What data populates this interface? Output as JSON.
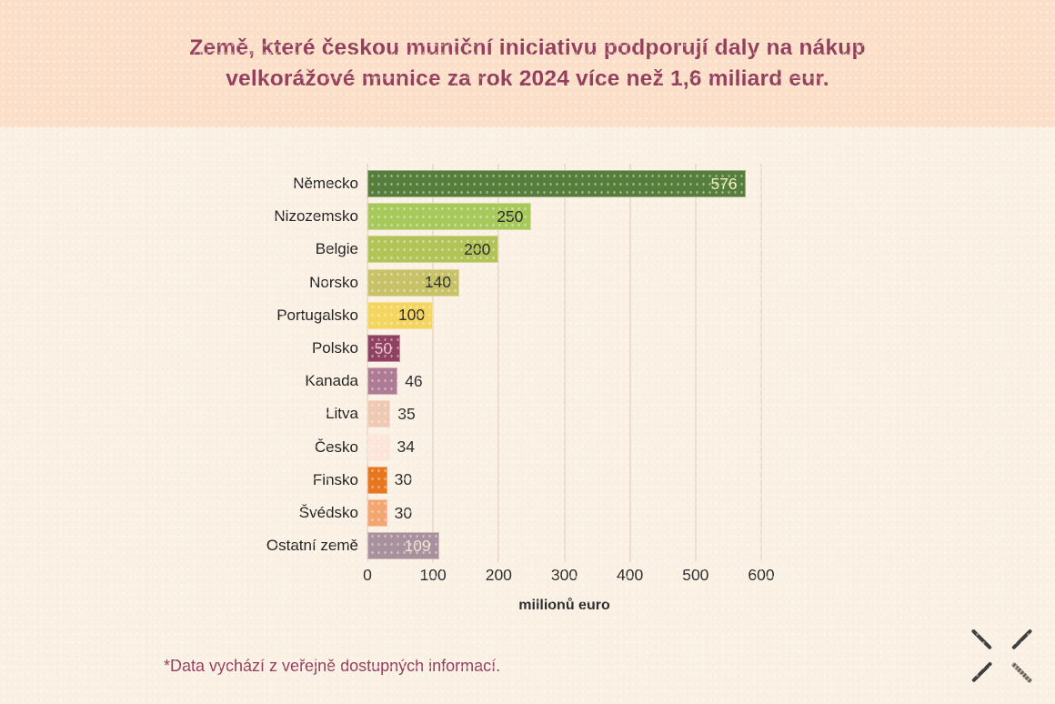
{
  "title": {
    "line1": "Země, které českou muniční iniciativu podporují daly na nákup",
    "line2": "velkorážové munice za rok 2024 více než 1,6 miliard eur."
  },
  "footnote": "*Data vychází z veřejně dostupných informací.",
  "chart_data": {
    "type": "bar",
    "orientation": "horizontal",
    "title": "Země, které českou muniční iniciativu podporují daly na nákup velkorážové munice za rok 2024 více než 1,6 miliard eur.",
    "xlabel": "millionů euro",
    "xlim": [
      0,
      600
    ],
    "x_ticks": [
      0,
      100,
      200,
      300,
      400,
      500,
      600
    ],
    "grid": "vertical",
    "legend": "none",
    "categories": [
      "Německo",
      "Nizozemsko",
      "Belgie",
      "Norsko",
      "Portugalsko",
      "Polsko",
      "Kanada",
      "Litva",
      "Česko",
      "Finsko",
      "Švédsko",
      "Ostatní země"
    ],
    "values": [
      576,
      250,
      200,
      140,
      100,
      50,
      46,
      35,
      34,
      30,
      30,
      109
    ],
    "bars": [
      {
        "label": "Německo",
        "value": 576,
        "color": "#557d3b",
        "value_label": "inside",
        "value_color": "#f2edbe"
      },
      {
        "label": "Nizozemsko",
        "value": 250,
        "color": "#a7c95b",
        "value_label": "inside",
        "value_color": "#2d2d2d"
      },
      {
        "label": "Belgie",
        "value": 200,
        "color": "#b2c457",
        "value_label": "inside",
        "value_color": "#2d2d2d"
      },
      {
        "label": "Norsko",
        "value": 140,
        "color": "#c7c267",
        "value_label": "inside",
        "value_color": "#2d2d2d"
      },
      {
        "label": "Portugalsko",
        "value": 100,
        "color": "#f3d55f",
        "value_label": "inside",
        "value_color": "#2d2d2d"
      },
      {
        "label": "Polsko",
        "value": 50,
        "color": "#8e4160",
        "value_label": "inside",
        "value_color": "#e5c0cd"
      },
      {
        "label": "Kanada",
        "value": 46,
        "color": "#ae7b94",
        "value_label": "outside",
        "value_color": "#2d2d2d"
      },
      {
        "label": "Litva",
        "value": 35,
        "color": "#efc9b1",
        "value_label": "outside",
        "value_color": "#2d2d2d"
      },
      {
        "label": "Česko",
        "value": 34,
        "color": "#fbe6d9",
        "value_label": "outside",
        "value_color": "#2d2d2d"
      },
      {
        "label": "Finsko",
        "value": 30,
        "color": "#e8761f",
        "value_label": "outside",
        "value_color": "#2d2d2d"
      },
      {
        "label": "Švédsko",
        "value": 30,
        "color": "#f3a672",
        "value_label": "outside",
        "value_color": "#2d2d2d"
      },
      {
        "label": "Ostatní země",
        "value": 109,
        "color": "#a8909d",
        "value_label": "inside",
        "value_color": "#f3e3ce"
      }
    ]
  },
  "colors": {
    "header_bg": "#fbdfc9",
    "body_bg": "#faf0e4",
    "title_text": "#94405c",
    "footnote_text": "#94405c",
    "axis_text": "#2d2d2d",
    "gridline": "#efdccd"
  },
  "logo": {
    "name": "crossed-lines-mark"
  }
}
